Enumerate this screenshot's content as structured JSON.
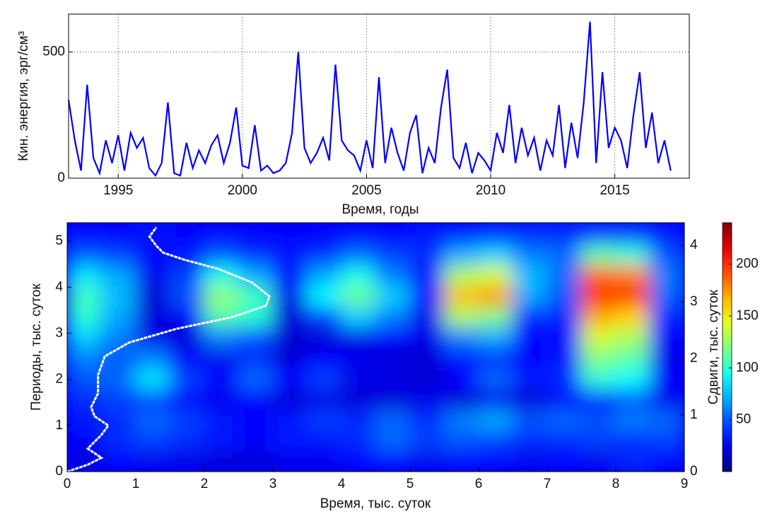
{
  "chart_data": [
    {
      "type": "line",
      "xlabel": "Время, годы",
      "ylabel": "Кин. энергия, эрг/см³",
      "color": "#0000ff",
      "grid": true,
      "xlim": [
        1993,
        2018
      ],
      "xticks": [
        1995,
        2000,
        2005,
        2010,
        2015
      ],
      "ylim": [
        0,
        650
      ],
      "yticks": [
        0,
        500
      ],
      "x": [
        1993,
        1993.25,
        1993.5,
        1993.75,
        1994,
        1994.25,
        1994.5,
        1994.75,
        1995,
        1995.25,
        1995.5,
        1995.75,
        1996,
        1996.25,
        1996.5,
        1996.75,
        1997,
        1997.25,
        1997.5,
        1997.75,
        1998,
        1998.25,
        1998.5,
        1998.75,
        1999,
        1999.25,
        1999.5,
        1999.75,
        2000,
        2000.25,
        2000.5,
        2000.75,
        2001,
        2001.25,
        2001.5,
        2001.75,
        2002,
        2002.25,
        2002.5,
        2002.75,
        2003,
        2003.25,
        2003.5,
        2003.75,
        2004,
        2004.25,
        2004.5,
        2004.75,
        2005,
        2005.25,
        2005.5,
        2005.75,
        2006,
        2006.25,
        2006.5,
        2006.75,
        2007,
        2007.25,
        2007.5,
        2007.75,
        2008,
        2008.25,
        2008.5,
        2008.75,
        2009,
        2009.25,
        2009.5,
        2009.75,
        2010,
        2010.25,
        2010.5,
        2010.75,
        2011,
        2011.25,
        2011.5,
        2011.75,
        2012,
        2012.25,
        2012.5,
        2012.75,
        2013,
        2013.25,
        2013.5,
        2013.75,
        2014,
        2014.25,
        2014.5,
        2014.75,
        2015,
        2015.25,
        2015.5,
        2015.75,
        2016,
        2016.25,
        2016.5,
        2016.75,
        2017,
        2017.25
      ],
      "values": [
        310,
        150,
        30,
        370,
        80,
        20,
        150,
        60,
        170,
        30,
        180,
        120,
        160,
        40,
        10,
        60,
        300,
        20,
        10,
        140,
        40,
        110,
        60,
        130,
        170,
        60,
        140,
        280,
        50,
        40,
        210,
        30,
        50,
        20,
        30,
        60,
        180,
        500,
        120,
        60,
        100,
        160,
        70,
        450,
        150,
        110,
        90,
        30,
        150,
        40,
        400,
        60,
        200,
        100,
        30,
        180,
        250,
        20,
        120,
        60,
        280,
        430,
        80,
        40,
        140,
        20,
        100,
        70,
        30,
        180,
        100,
        290,
        60,
        200,
        90,
        160,
        30,
        150,
        90,
        290,
        40,
        220,
        80,
        300,
        620,
        60,
        420,
        120,
        200,
        150,
        40,
        250,
        420,
        120,
        260,
        60,
        150,
        30
      ]
    },
    {
      "type": "heatmap",
      "xlabel": "Время, тыс. суток",
      "ylabel": "Периоды, тыс. суток",
      "y2label": "Сдвиги, тыс. суток",
      "colormap": "jet",
      "xlim": [
        0,
        9
      ],
      "xticks": [
        0,
        1,
        2,
        3,
        4,
        5,
        6,
        7,
        8,
        9
      ],
      "ylim": [
        0,
        5.4
      ],
      "yticks": [
        0,
        1,
        2,
        3,
        4,
        5
      ],
      "y2lim": [
        0,
        4.4
      ],
      "y2ticks": [
        0,
        1,
        2,
        3,
        4
      ],
      "clim": [
        0,
        240
      ],
      "cticks": [
        50,
        100,
        150,
        200
      ],
      "xbins": [
        0,
        0.5,
        1,
        1.5,
        2,
        2.5,
        3,
        3.5,
        4,
        4.5,
        5,
        5.5,
        6,
        6.5,
        7,
        7.5,
        8,
        8.5,
        9
      ],
      "ybins": [
        0,
        0.45,
        0.9,
        1.35,
        1.8,
        2.25,
        2.7,
        3.15,
        3.6,
        4.05,
        4.5,
        4.95,
        5.4
      ],
      "z": [
        [
          20,
          30,
          25,
          25,
          20,
          20,
          25,
          25,
          30,
          30,
          25,
          30,
          30,
          25,
          30,
          25,
          40,
          30
        ],
        [
          30,
          40,
          45,
          40,
          35,
          30,
          35,
          35,
          40,
          55,
          45,
          50,
          45,
          40,
          40,
          45,
          40,
          45
        ],
        [
          35,
          40,
          55,
          45,
          35,
          30,
          35,
          45,
          40,
          55,
          40,
          60,
          70,
          50,
          55,
          50,
          60,
          55
        ],
        [
          40,
          45,
          45,
          30,
          25,
          30,
          20,
          25,
          20,
          20,
          25,
          20,
          25,
          20,
          30,
          35,
          50,
          25
        ],
        [
          50,
          55,
          85,
          45,
          30,
          55,
          30,
          45,
          25,
          25,
          20,
          30,
          55,
          35,
          40,
          100,
          90,
          30
        ],
        [
          60,
          50,
          60,
          30,
          25,
          40,
          20,
          30,
          25,
          20,
          20,
          35,
          40,
          30,
          35,
          120,
          110,
          25
        ],
        [
          80,
          60,
          25,
          20,
          60,
          50,
          20,
          20,
          25,
          30,
          25,
          60,
          70,
          30,
          30,
          140,
          130,
          30
        ],
        [
          100,
          70,
          20,
          30,
          110,
          100,
          20,
          45,
          80,
          60,
          25,
          130,
          120,
          40,
          40,
          170,
          160,
          40
        ],
        [
          105,
          75,
          20,
          50,
          125,
          105,
          25,
          90,
          115,
          80,
          30,
          165,
          175,
          70,
          50,
          200,
          200,
          55
        ],
        [
          85,
          70,
          25,
          45,
          95,
          70,
          30,
          70,
          95,
          60,
          35,
          130,
          140,
          75,
          55,
          185,
          180,
          60
        ],
        [
          50,
          45,
          30,
          35,
          50,
          40,
          35,
          40,
          55,
          45,
          40,
          70,
          80,
          60,
          55,
          110,
          100,
          50
        ],
        [
          30,
          30,
          35,
          30,
          30,
          30,
          30,
          30,
          30,
          30,
          35,
          35,
          40,
          40,
          40,
          45,
          45,
          35
        ]
      ],
      "line": {
        "color": "#ffffff",
        "x": [
          0,
          0.3,
          0.5,
          0.3,
          0.5,
          0.6,
          0.4,
          0.35,
          0.45,
          0.45,
          0.55,
          0.9,
          1.6,
          2.4,
          2.9,
          2.95,
          2.7,
          2.2,
          1.7,
          1.4,
          1.3,
          1.2,
          1.3
        ],
        "y": [
          0,
          0.15,
          0.3,
          0.5,
          0.8,
          1.0,
          1.2,
          1.4,
          1.7,
          2.1,
          2.5,
          2.8,
          3.1,
          3.35,
          3.6,
          3.8,
          4.1,
          4.4,
          4.6,
          4.75,
          4.9,
          5.1,
          5.3
        ]
      }
    }
  ]
}
